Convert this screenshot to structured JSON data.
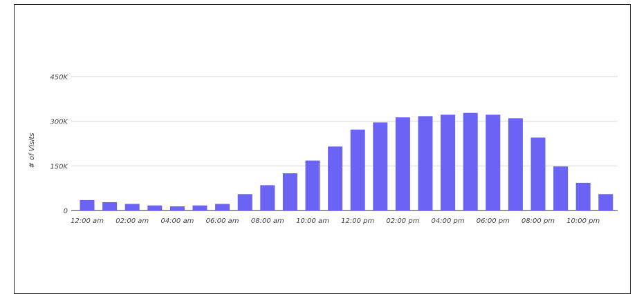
{
  "colors": {
    "bar": "#6a63f4",
    "grid": "#d6d6d6",
    "baseline": "#555555",
    "frame": "#222222"
  },
  "chart_data": {
    "type": "bar",
    "title": "",
    "xlabel": "",
    "ylabel": "# of Visits",
    "ylim": [
      0,
      450000
    ],
    "y_ticks": [
      {
        "value": 0,
        "label": "0"
      },
      {
        "value": 150000,
        "label": "150K"
      },
      {
        "value": 300000,
        "label": "300K"
      },
      {
        "value": 450000,
        "label": "450K"
      }
    ],
    "x_tick_labels": [
      "12:00 am",
      "02:00 am",
      "04:00 am",
      "06:00 am",
      "08:00 am",
      "10:00 am",
      "12:00 pm",
      "02:00 pm",
      "04:00 pm",
      "06:00 pm",
      "08:00 pm",
      "10:00 pm"
    ],
    "x_tick_every": 2,
    "categories": [
      "12:00 am",
      "01:00 am",
      "02:00 am",
      "03:00 am",
      "04:00 am",
      "05:00 am",
      "06:00 am",
      "07:00 am",
      "08:00 am",
      "09:00 am",
      "10:00 am",
      "11:00 am",
      "12:00 pm",
      "01:00 pm",
      "02:00 pm",
      "03:00 pm",
      "04:00 pm",
      "05:00 pm",
      "06:00 pm",
      "07:00 pm",
      "08:00 pm",
      "09:00 pm",
      "10:00 pm",
      "11:00 pm"
    ],
    "values": [
      35000,
      28000,
      22000,
      17000,
      14000,
      17000,
      22000,
      55000,
      85000,
      125000,
      168000,
      215000,
      272000,
      296000,
      313000,
      317000,
      322000,
      328000,
      322000,
      310000,
      245000,
      148000,
      93000,
      55000
    ],
    "grid": true,
    "legend": "none"
  }
}
